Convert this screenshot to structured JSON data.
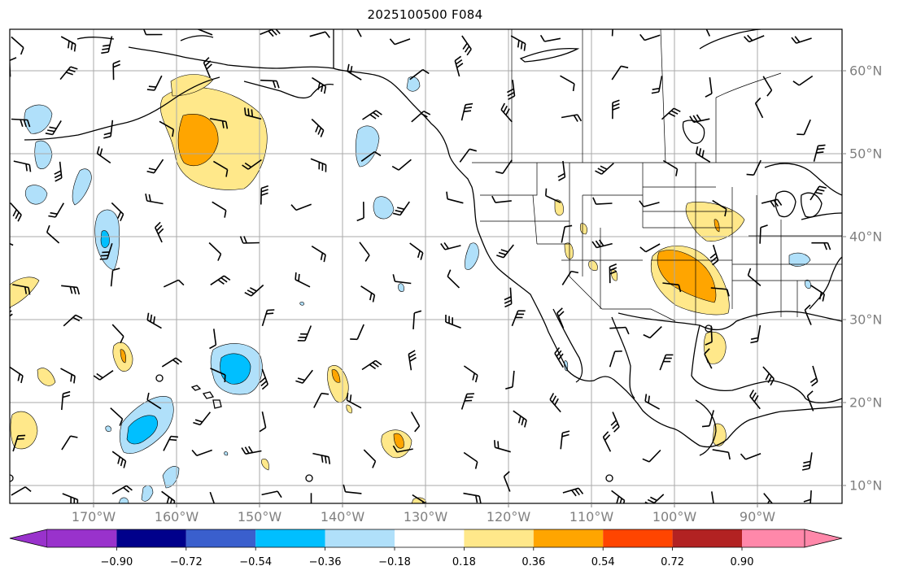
{
  "title": "2025100500 F084",
  "lon_labels": [
    "170°W",
    "160°W",
    "150°W",
    "140°W",
    "130°W",
    "120°W",
    "110°W",
    "100°W",
    "90°W"
  ],
  "lat_labels": [
    "60°N",
    "50°N",
    "40°N",
    "30°N",
    "20°N",
    "10°N"
  ],
  "colorbar": {
    "labels": [
      "−0.90",
      "−0.72",
      "−0.54",
      "−0.36",
      "−0.18",
      "0.18",
      "0.36",
      "0.54",
      "0.72",
      "0.90"
    ],
    "colors": [
      "#9932cc",
      "#00008b",
      "#3a5fcd",
      "#00bfff",
      "#b0e0fa",
      "#ffffff",
      "#ffe88a",
      "#ffa500",
      "#ff4500",
      "#b22222",
      "#ff88aa"
    ]
  },
  "field_colors": {
    "neg_light": "#b0e0fa",
    "neg_mid": "#00bfff",
    "neg_dark": "#3a5fcd",
    "pos_light": "#ffe88a",
    "pos_mid": "#ffa500"
  }
}
